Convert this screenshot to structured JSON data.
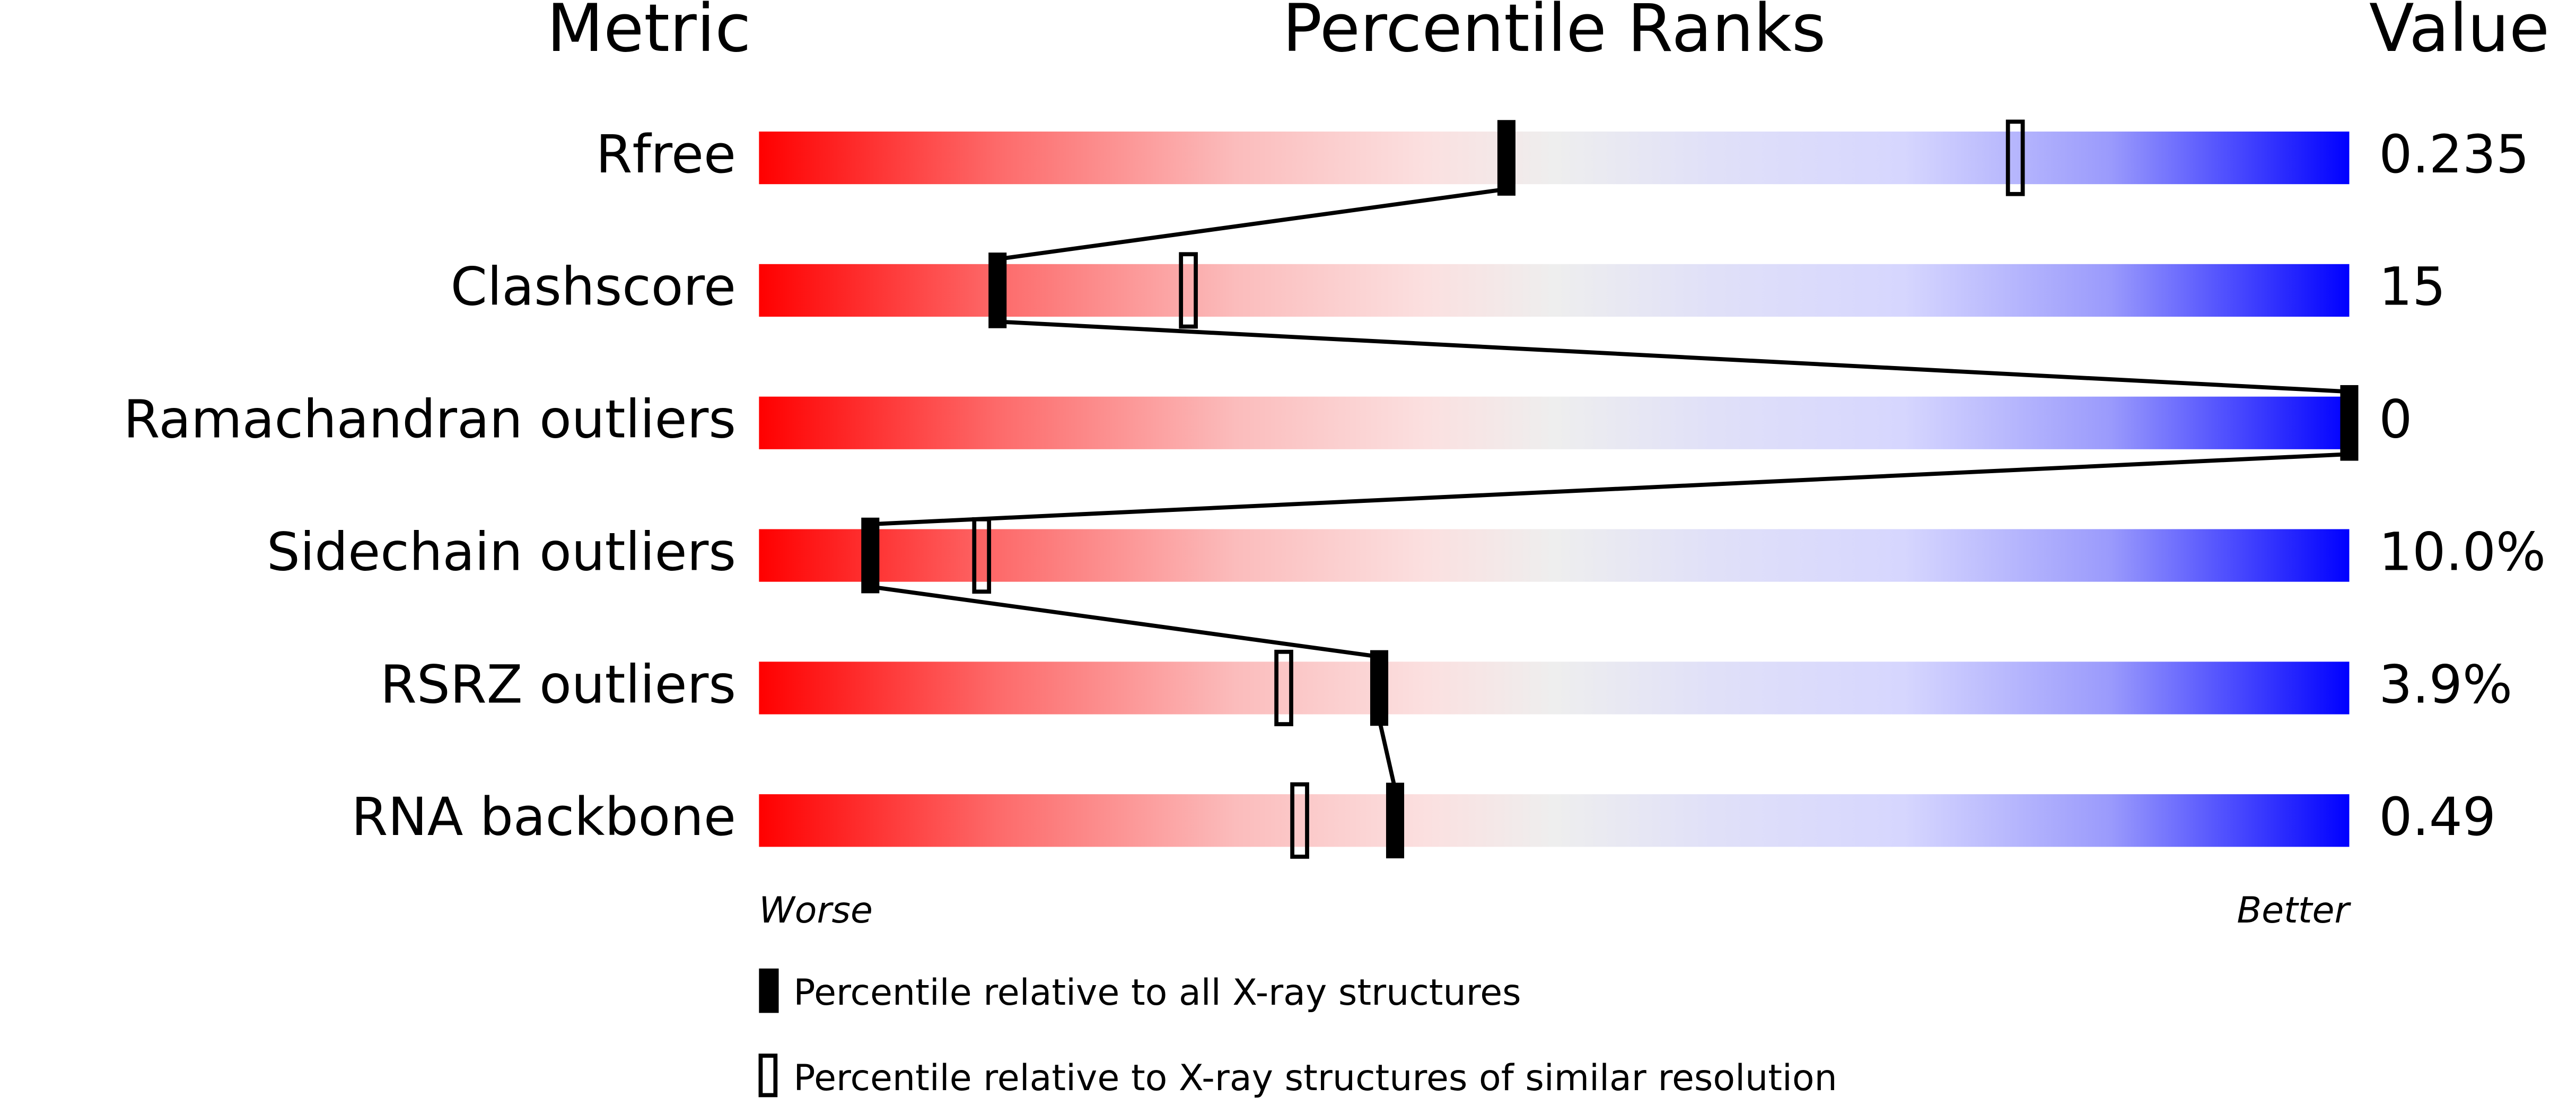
{
  "chart_data": {
    "type": "percentile",
    "metric_header": "Metric",
    "title": "Percentile Ranks",
    "value_header": "Value",
    "categories": [
      "Rfree",
      "Clashscore",
      "Ramachandran outliers",
      "Sidechain outliers",
      "RSRZ outliers",
      "RNA backbone"
    ],
    "metric_values": [
      "0.235",
      "15",
      "0",
      "10.0%",
      "3.9%",
      "0.49"
    ],
    "series": [
      {
        "name": "Percentile relative to all X-ray structures",
        "color": "#000000",
        "values": [
          47,
          15,
          100,
          7,
          39,
          40
        ]
      },
      {
        "name": "Percentile relative to X-ray structures of similar resolution",
        "color": "#000000",
        "values": [
          79,
          27,
          null,
          14,
          33,
          34
        ]
      }
    ],
    "xlim": [
      0,
      100
    ],
    "worse_label": "Worse",
    "better_label": "Better"
  }
}
